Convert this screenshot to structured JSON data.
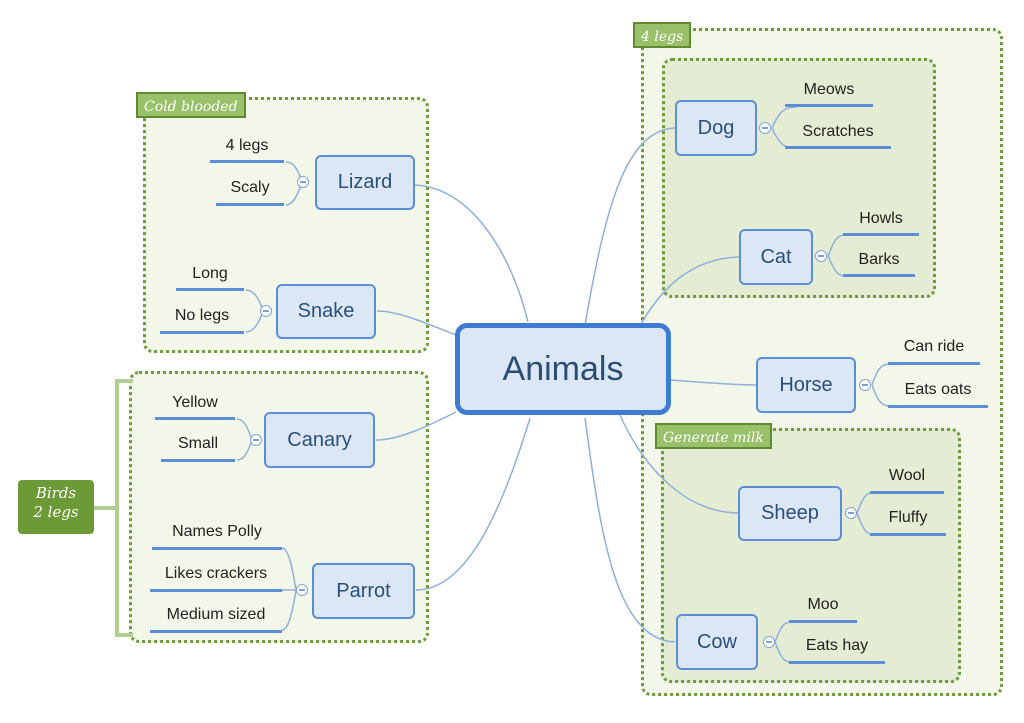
{
  "central": "Animals",
  "groups": {
    "four_legs": "4 legs",
    "cold_blooded": "Cold blooded",
    "generate_milk": "Generate milk",
    "birds_line1": "Birds",
    "birds_line2": "2 legs"
  },
  "branches": {
    "dog": {
      "label": "Dog",
      "leaves": [
        "Meows",
        "Scratches"
      ]
    },
    "cat": {
      "label": "Cat",
      "leaves": [
        "Howls",
        "Barks"
      ]
    },
    "horse": {
      "label": "Horse",
      "leaves": [
        "Can ride",
        "Eats oats"
      ]
    },
    "sheep": {
      "label": "Sheep",
      "leaves": [
        "Wool",
        "Fluffy"
      ]
    },
    "cow": {
      "label": "Cow",
      "leaves": [
        "Moo",
        "Eats hay"
      ]
    },
    "lizard": {
      "label": "Lizard",
      "leaves": [
        "4 legs",
        "Scaly"
      ]
    },
    "snake": {
      "label": "Snake",
      "leaves": [
        "Long",
        "No legs"
      ]
    },
    "canary": {
      "label": "Canary",
      "leaves": [
        "Yellow",
        "Small"
      ]
    },
    "parrot": {
      "label": "Parrot",
      "leaves": [
        "Names Polly",
        "Likes crackers",
        "Medium sized"
      ]
    }
  },
  "colors": {
    "accent_blue": "#5b8ed6",
    "group_green": "#6f9a3d",
    "tag_green": "#98c16a"
  }
}
